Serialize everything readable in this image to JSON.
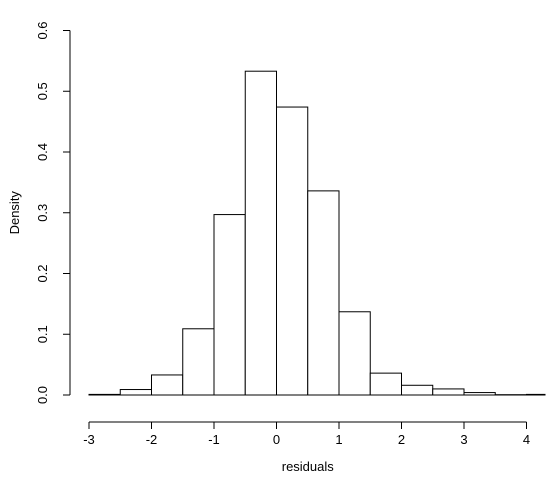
{
  "chart_data": {
    "type": "bar",
    "title": "",
    "xlabel": "residuals",
    "ylabel": "Density",
    "xlim": [
      -3,
      4.25
    ],
    "ylim": [
      0,
      0.6
    ],
    "grid": false,
    "x_ticks": [
      -3,
      -2,
      -1,
      0,
      1,
      2,
      3,
      4
    ],
    "x_tick_labels": [
      "-3",
      "-2",
      "-1",
      "0",
      "1",
      "2",
      "3",
      "4"
    ],
    "y_ticks": [
      0.0,
      0.1,
      0.2,
      0.3,
      0.4,
      0.5,
      0.6
    ],
    "y_tick_labels": [
      "0.0",
      "0.1",
      "0.2",
      "0.3",
      "0.4",
      "0.5",
      "0.6"
    ],
    "bins": [
      {
        "x0": -3.0,
        "x1": -2.5,
        "density": 0.001
      },
      {
        "x0": -2.5,
        "x1": -2.0,
        "density": 0.009
      },
      {
        "x0": -2.0,
        "x1": -1.5,
        "density": 0.033
      },
      {
        "x0": -1.5,
        "x1": -1.0,
        "density": 0.109
      },
      {
        "x0": -1.0,
        "x1": -0.5,
        "density": 0.297
      },
      {
        "x0": -0.5,
        "x1": 0.0,
        "density": 0.533
      },
      {
        "x0": 0.0,
        "x1": 0.5,
        "density": 0.474
      },
      {
        "x0": 0.5,
        "x1": 1.0,
        "density": 0.336
      },
      {
        "x0": 1.0,
        "x1": 1.5,
        "density": 0.137
      },
      {
        "x0": 1.5,
        "x1": 2.0,
        "density": 0.036
      },
      {
        "x0": 2.0,
        "x1": 2.5,
        "density": 0.016
      },
      {
        "x0": 2.5,
        "x1": 3.0,
        "density": 0.01
      },
      {
        "x0": 3.0,
        "x1": 3.5,
        "density": 0.004
      },
      {
        "x0": 3.5,
        "x1": 4.0,
        "density": 0.0005
      },
      {
        "x0": 4.0,
        "x1": 4.5,
        "density": 0.001
      }
    ]
  }
}
